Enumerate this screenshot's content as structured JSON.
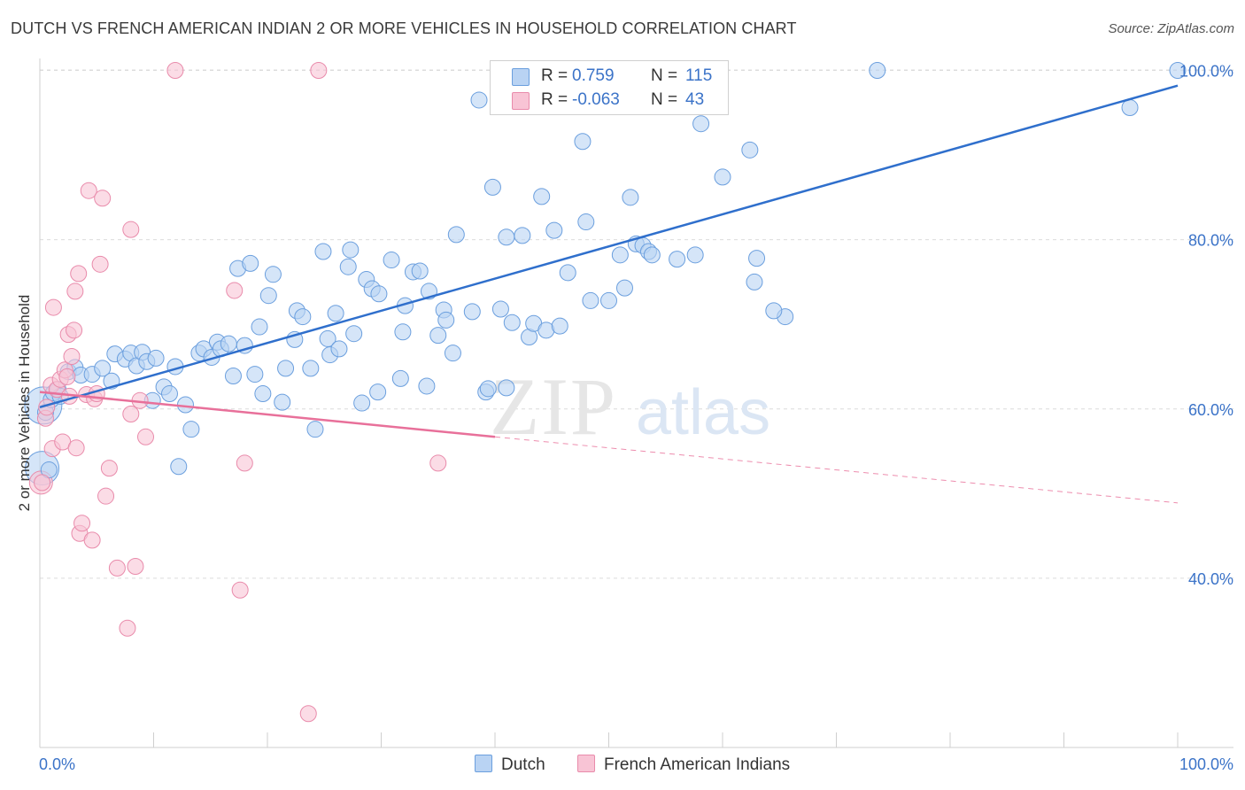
{
  "title": "DUTCH VS FRENCH AMERICAN INDIAN 2 OR MORE VEHICLES IN HOUSEHOLD CORRELATION CHART",
  "source": "Source: ZipAtlas.com",
  "watermark": {
    "zip": "ZIP",
    "atlas": "atlas"
  },
  "legend": {
    "r_label": "R =",
    "n_label": "N =",
    "entries": [
      {
        "r": "0.759",
        "n": "115"
      },
      {
        "r": "-0.063",
        "n": "43"
      }
    ]
  },
  "bottom_legend": [
    "Dutch",
    "French American Indians"
  ],
  "colors": {
    "dutch_fill": "#b9d3f3",
    "dutch_stroke": "#6b9fde",
    "dutch_line": "#2f6fcc",
    "french_fill": "#f8c4d5",
    "french_stroke": "#e98bab",
    "french_line": "#e8709a",
    "axis_text": "#3b73c8",
    "grid": "#dcdcdc"
  },
  "chart_data": {
    "type": "scatter",
    "title": "DUTCH VS FRENCH AMERICAN INDIAN 2 OR MORE VEHICLES IN HOUSEHOLD CORRELATION CHART",
    "xlabel": "",
    "ylabel": "2 or more Vehicles in Household",
    "xlim": [
      0,
      100
    ],
    "ylim": [
      20,
      102
    ],
    "x_tick_labels": [
      "0.0%",
      "100.0%"
    ],
    "y_ticks": [
      40,
      60,
      80,
      100
    ],
    "y_tick_labels": [
      "40.0%",
      "60.0%",
      "80.0%",
      "100.0%"
    ],
    "grid": true,
    "legend_position": "top-center",
    "series": [
      {
        "name": "Dutch",
        "r": 0.759,
        "n": 115,
        "trend": {
          "x": [
            0,
            100
          ],
          "y": [
            60.2,
            98.2
          ]
        },
        "points": [
          [
            0.5,
            59.6
          ],
          [
            0.8,
            52.8
          ],
          [
            1.0,
            61.1
          ],
          [
            1.2,
            61.9
          ],
          [
            1.6,
            62.3
          ],
          [
            1.8,
            61.5
          ],
          [
            2.5,
            64.4
          ],
          [
            3.1,
            64.9
          ],
          [
            3.6,
            64.0
          ],
          [
            4.6,
            64.1
          ],
          [
            5.5,
            64.8
          ],
          [
            6.3,
            63.3
          ],
          [
            6.6,
            66.5
          ],
          [
            7.5,
            65.9
          ],
          [
            8.0,
            66.6
          ],
          [
            8.5,
            65.1
          ],
          [
            9.0,
            66.7
          ],
          [
            9.4,
            65.6
          ],
          [
            10.2,
            66.0
          ],
          [
            10.9,
            62.6
          ],
          [
            9.9,
            61.0
          ],
          [
            11.4,
            61.8
          ],
          [
            11.9,
            65.0
          ],
          [
            12.8,
            60.5
          ],
          [
            13.3,
            57.6
          ],
          [
            12.2,
            53.2
          ],
          [
            14.0,
            66.6
          ],
          [
            14.4,
            67.1
          ],
          [
            15.1,
            66.1
          ],
          [
            15.6,
            67.9
          ],
          [
            15.9,
            67.1
          ],
          [
            16.6,
            67.7
          ],
          [
            17.0,
            63.9
          ],
          [
            17.4,
            76.6
          ],
          [
            18.0,
            67.5
          ],
          [
            18.5,
            77.2
          ],
          [
            18.9,
            64.1
          ],
          [
            19.3,
            69.7
          ],
          [
            19.6,
            61.8
          ],
          [
            20.1,
            73.4
          ],
          [
            20.5,
            75.9
          ],
          [
            21.3,
            60.8
          ],
          [
            21.6,
            64.8
          ],
          [
            22.4,
            68.2
          ],
          [
            22.6,
            71.6
          ],
          [
            23.1,
            70.9
          ],
          [
            23.8,
            64.8
          ],
          [
            24.2,
            57.6
          ],
          [
            24.9,
            78.6
          ],
          [
            25.3,
            68.3
          ],
          [
            25.5,
            66.4
          ],
          [
            26.0,
            71.3
          ],
          [
            26.3,
            67.1
          ],
          [
            27.1,
            76.8
          ],
          [
            27.3,
            78.8
          ],
          [
            27.6,
            68.9
          ],
          [
            28.3,
            60.7
          ],
          [
            28.7,
            75.3
          ],
          [
            29.2,
            74.2
          ],
          [
            29.7,
            62.0
          ],
          [
            29.8,
            73.6
          ],
          [
            30.9,
            77.6
          ],
          [
            31.7,
            63.6
          ],
          [
            31.9,
            69.1
          ],
          [
            32.1,
            72.2
          ],
          [
            32.8,
            76.2
          ],
          [
            33.4,
            76.3
          ],
          [
            34.0,
            62.7
          ],
          [
            34.2,
            73.9
          ],
          [
            35.0,
            68.7
          ],
          [
            35.5,
            71.7
          ],
          [
            35.7,
            70.5
          ],
          [
            36.3,
            66.6
          ],
          [
            36.6,
            80.6
          ],
          [
            38.0,
            71.5
          ],
          [
            38.6,
            96.5
          ],
          [
            39.2,
            62.0
          ],
          [
            39.4,
            62.4
          ],
          [
            39.8,
            86.2
          ],
          [
            40.5,
            71.8
          ],
          [
            41.0,
            80.3
          ],
          [
            41.5,
            70.2
          ],
          [
            42.4,
            80.5
          ],
          [
            43.0,
            68.5
          ],
          [
            43.4,
            70.1
          ],
          [
            44.1,
            85.1
          ],
          [
            44.5,
            69.3
          ],
          [
            45.2,
            81.1
          ],
          [
            45.7,
            69.8
          ],
          [
            46.4,
            76.1
          ],
          [
            47.7,
            91.6
          ],
          [
            48.0,
            82.1
          ],
          [
            48.4,
            72.8
          ],
          [
            50.0,
            72.8
          ],
          [
            51.0,
            78.2
          ],
          [
            51.4,
            74.3
          ],
          [
            51.9,
            85.0
          ],
          [
            52.4,
            79.5
          ],
          [
            53.0,
            79.3
          ],
          [
            53.5,
            78.6
          ],
          [
            53.8,
            78.2
          ],
          [
            56.0,
            77.7
          ],
          [
            57.6,
            78.2
          ],
          [
            58.1,
            93.7
          ],
          [
            60.0,
            87.4
          ],
          [
            62.4,
            90.6
          ],
          [
            62.8,
            75.0
          ],
          [
            63.0,
            77.8
          ],
          [
            65.5,
            70.9
          ],
          [
            73.6,
            100.0
          ],
          [
            56.1,
            100.0
          ],
          [
            95.8,
            95.6
          ],
          [
            100.0,
            100.0
          ],
          [
            41.0,
            62.5
          ],
          [
            64.5,
            71.6
          ]
        ]
      },
      {
        "name": "French American Indians",
        "r": -0.063,
        "n": 43,
        "trend": {
          "x": [
            0,
            40.0,
            100
          ],
          "y": [
            62.0,
            56.7,
            48.9
          ],
          "solid_until_x": 40.0
        },
        "points": [
          [
            0.2,
            51.3
          ],
          [
            0.5,
            58.9
          ],
          [
            0.6,
            60.2
          ],
          [
            1.0,
            62.8
          ],
          [
            1.1,
            55.3
          ],
          [
            1.2,
            72.0
          ],
          [
            1.5,
            62.3
          ],
          [
            1.8,
            63.5
          ],
          [
            2.0,
            56.1
          ],
          [
            2.2,
            64.6
          ],
          [
            2.4,
            63.8
          ],
          [
            2.5,
            68.8
          ],
          [
            2.6,
            61.5
          ],
          [
            2.8,
            66.2
          ],
          [
            3.0,
            69.3
          ],
          [
            3.1,
            73.9
          ],
          [
            3.2,
            55.4
          ],
          [
            3.4,
            76.0
          ],
          [
            3.5,
            45.3
          ],
          [
            3.7,
            46.5
          ],
          [
            4.1,
            61.7
          ],
          [
            4.3,
            85.8
          ],
          [
            4.6,
            44.5
          ],
          [
            4.8,
            61.2
          ],
          [
            5.0,
            61.8
          ],
          [
            5.3,
            77.1
          ],
          [
            5.5,
            84.9
          ],
          [
            5.8,
            49.7
          ],
          [
            6.1,
            53.0
          ],
          [
            6.8,
            41.2
          ],
          [
            7.7,
            34.1
          ],
          [
            8.0,
            59.4
          ],
          [
            8.0,
            81.2
          ],
          [
            8.4,
            41.4
          ],
          [
            9.3,
            56.7
          ],
          [
            11.9,
            100.0
          ],
          [
            17.1,
            74.0
          ],
          [
            17.6,
            38.6
          ],
          [
            18.0,
            53.6
          ],
          [
            23.6,
            24.0
          ],
          [
            24.5,
            100.0
          ],
          [
            35.0,
            53.6
          ],
          [
            8.8,
            61.0
          ]
        ]
      }
    ]
  }
}
